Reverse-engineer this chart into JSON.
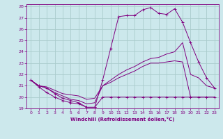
{
  "xlabel": "Windchill (Refroidissement éolien,°C)",
  "background_color": "#cce8ec",
  "grid_color": "#aacccc",
  "line_color": "#800080",
  "xlim": [
    -0.5,
    23.5
  ],
  "ylim": [
    19,
    28.2
  ],
  "xticks": [
    0,
    1,
    2,
    3,
    4,
    5,
    6,
    7,
    8,
    9,
    10,
    11,
    12,
    13,
    14,
    15,
    16,
    17,
    18,
    19,
    20,
    21,
    22,
    23
  ],
  "yticks": [
    19,
    20,
    21,
    22,
    23,
    24,
    25,
    26,
    27,
    28
  ],
  "series": [
    {
      "x": [
        0,
        1,
        2,
        3,
        4,
        5,
        6,
        7,
        8,
        9,
        10,
        11,
        12,
        13,
        14,
        15,
        16,
        17,
        18,
        19,
        20,
        21,
        22,
        23
      ],
      "y": [
        21.5,
        21.0,
        20.8,
        20.3,
        19.9,
        19.7,
        19.5,
        19.1,
        19.1,
        21.5,
        24.3,
        27.1,
        27.2,
        27.2,
        27.7,
        27.9,
        27.4,
        27.3,
        27.8,
        26.6,
        24.8,
        23.1,
        21.7,
        20.8
      ],
      "marker": "+"
    },
    {
      "x": [
        0,
        1,
        2,
        3,
        4,
        5,
        6,
        7,
        8,
        9,
        10,
        11,
        12,
        13,
        14,
        15,
        16,
        17,
        18,
        19,
        20,
        21,
        22,
        23
      ],
      "y": [
        21.5,
        21.0,
        20.9,
        20.6,
        20.3,
        20.2,
        20.1,
        19.8,
        19.9,
        21.0,
        21.5,
        22.0,
        22.4,
        22.7,
        23.1,
        23.4,
        23.5,
        23.8,
        24.0,
        24.8,
        22.0,
        21.7,
        21.0,
        20.8
      ],
      "marker": null
    },
    {
      "x": [
        0,
        1,
        2,
        3,
        4,
        5,
        6,
        7,
        8,
        9,
        10,
        11,
        12,
        13,
        14,
        15,
        16,
        17,
        18,
        19,
        20,
        21,
        22,
        23
      ],
      "y": [
        21.5,
        21.0,
        20.8,
        20.4,
        20.1,
        19.8,
        19.7,
        19.4,
        19.5,
        21.0,
        21.3,
        21.7,
        22.0,
        22.3,
        22.7,
        23.0,
        23.0,
        23.1,
        23.2,
        23.1,
        20.0,
        20.0,
        20.0,
        20.0
      ],
      "marker": null
    },
    {
      "x": [
        0,
        1,
        2,
        3,
        4,
        5,
        6,
        7,
        8,
        9,
        10,
        11,
        12,
        13,
        14,
        15,
        16,
        17,
        18,
        19,
        20,
        21,
        22,
        23
      ],
      "y": [
        21.5,
        20.9,
        20.4,
        20.0,
        19.7,
        19.5,
        19.4,
        19.1,
        19.1,
        20.0,
        20.0,
        20.0,
        20.0,
        20.0,
        20.0,
        20.0,
        20.0,
        20.0,
        20.0,
        20.0,
        20.0,
        20.0,
        20.0,
        20.0
      ],
      "marker": "+"
    }
  ]
}
